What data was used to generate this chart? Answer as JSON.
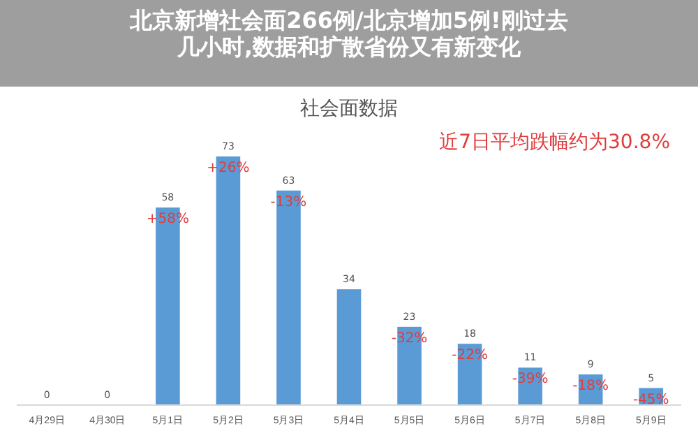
{
  "chart_data": {
    "type": "bar",
    "title": "社会面数据",
    "subtitle": "北京新增社会面266例/北京增加5例!刚过去几小时,数据和扩散省份又有新变化",
    "categories": [
      "4月29日",
      "4月30日",
      "5月1日",
      "5月2日",
      "5月3日",
      "5月4日",
      "5月5日",
      "5月6日",
      "5月7日",
      "5月8日",
      "5月9日"
    ],
    "values": [
      0,
      0,
      58,
      73,
      63,
      34,
      23,
      18,
      11,
      9,
      5
    ],
    "color": "#5b9bd5",
    "data_labels": true,
    "annotations": [
      "近7日平均跌幅约为30.8%",
      {
        "text": "+58%",
        "x": "5月1日",
        "y": 58
      },
      {
        "text": "+26%",
        "x": "5月2日",
        "y": 73
      },
      {
        "text": "-13%",
        "x": "5月3日",
        "y": 63
      },
      {
        "text": "-32%",
        "x": "5月5日",
        "y": 23
      },
      {
        "text": "-22%",
        "x": "5月6日",
        "y": 18
      },
      {
        "text": "-39%",
        "x": "5月7日",
        "y": 11
      },
      {
        "text": "-18%",
        "x": "5月8日",
        "y": 9
      },
      {
        "text": "-45%",
        "x": "5月9日",
        "y": 5
      }
    ]
  }
}
